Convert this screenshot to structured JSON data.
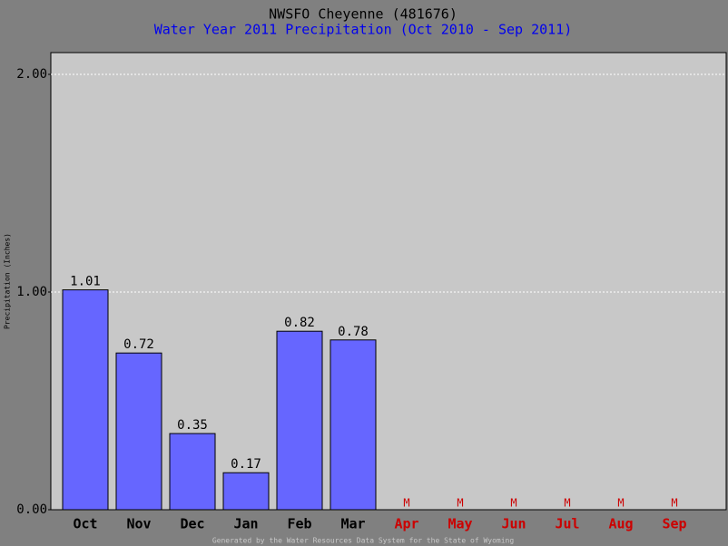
{
  "chart_data": {
    "type": "bar",
    "title": "NWSFO Cheyenne (481676)",
    "subtitle": "Water Year 2011 Precipitation (Oct 2010 - Sep 2011)",
    "y_label": "Precipitation (Inches)",
    "footer": "Generated by the Water Resources Data System for the State of Wyoming",
    "categories": [
      "Oct",
      "Nov",
      "Dec",
      "Jan",
      "Feb",
      "Mar",
      "Apr",
      "May",
      "Jun",
      "Jul",
      "Aug",
      "Sep"
    ],
    "values": [
      1.01,
      0.72,
      0.35,
      0.17,
      0.82,
      0.78,
      null,
      null,
      null,
      null,
      null,
      null
    ],
    "value_labels": [
      "1.01",
      "0.72",
      "0.35",
      "0.17",
      "0.82",
      "0.78",
      "M",
      "M",
      "M",
      "M",
      "M",
      "M"
    ],
    "color": "#6666ff",
    "missing_color": "#cc0000",
    "ylim": [
      0,
      2.1
    ],
    "yticks": [
      {
        "value": 0,
        "label": "0.00"
      },
      {
        "value": 1,
        "label": "1.00"
      },
      {
        "value": 2,
        "label": "2.00"
      }
    ],
    "grid": true
  }
}
